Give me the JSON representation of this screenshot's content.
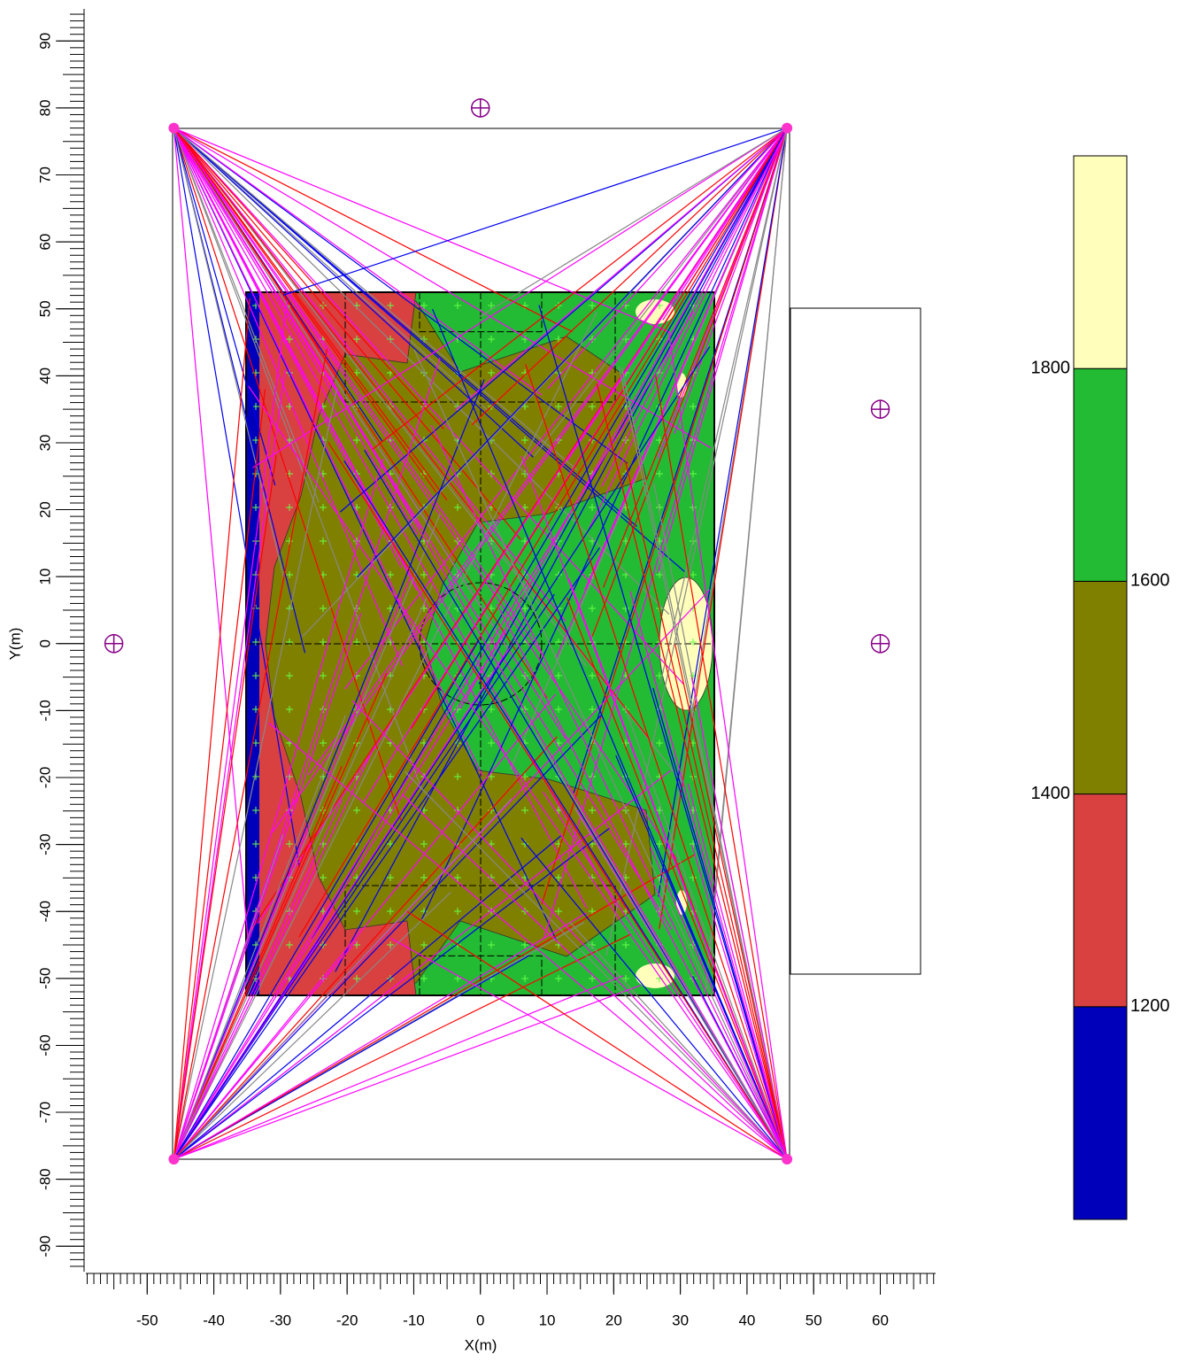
{
  "chart_data": {
    "type": "heatmap",
    "xlabel": "X(m)",
    "ylabel": "Y(m)",
    "xlim": [
      -59.2,
      68.3
    ],
    "ylim": [
      94.8,
      -93.8
    ],
    "xticks": [
      -50,
      -40,
      -30,
      -20,
      -10,
      0,
      10,
      20,
      30,
      40,
      50,
      60
    ],
    "yticks": [
      -90,
      -80,
      -70,
      -60,
      -50,
      -40,
      -30,
      -20,
      -10,
      0,
      10,
      20,
      30,
      40,
      50,
      60,
      70,
      80,
      90
    ],
    "colorbar": {
      "lim": [
        1000,
        2000
      ],
      "ticks": [
        1200,
        1400,
        1600,
        1800
      ],
      "colors": [
        "#0000bb",
        "#d94040",
        "#808000",
        "#22bb33",
        "#ffffbb"
      ]
    },
    "poles": {
      "x": [
        -46,
        46,
        -46,
        46
      ],
      "y": [
        77,
        77,
        -77,
        -77
      ]
    },
    "markers": {
      "x": [
        0,
        -55,
        60,
        60
      ],
      "y": [
        80,
        0,
        35,
        0
      ]
    },
    "beam_colors": [
      "#ff00ff",
      "#0000ee",
      "#888888",
      "#ff0000",
      "#ff00ff"
    ]
  }
}
